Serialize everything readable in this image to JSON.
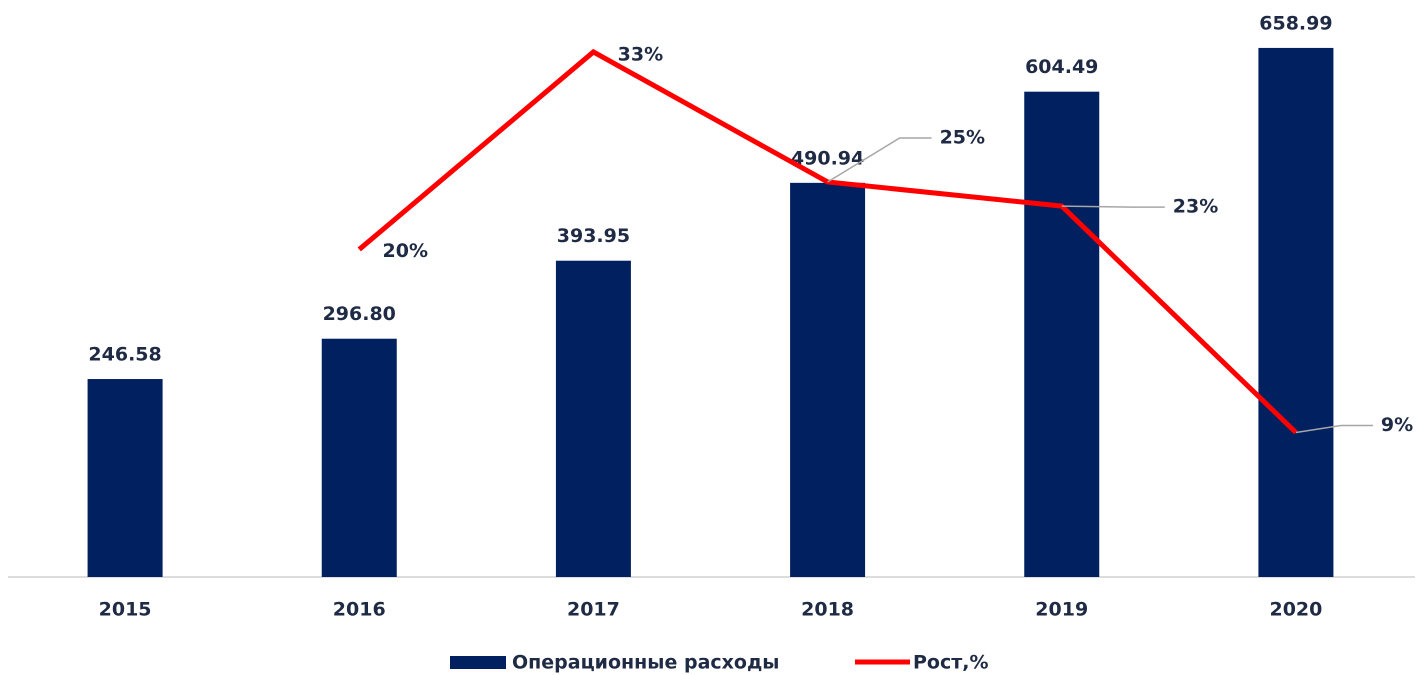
{
  "chart_data": {
    "type": "bar",
    "categories": [
      "2015",
      "2016",
      "2017",
      "2018",
      "2019",
      "2020"
    ],
    "ylim": [
      0,
      700
    ],
    "y2lim": [
      0,
      35
    ],
    "series": [
      {
        "name": "Операционные расходы",
        "type": "bar",
        "color": "#002060",
        "values": [
          246.58,
          296.8,
          393.95,
          490.94,
          604.49,
          658.99
        ],
        "value_labels": [
          "246.58",
          "296.80",
          "393.95",
          "490.94",
          "604.49",
          "658.99"
        ]
      },
      {
        "name": "Рост,%",
        "type": "line",
        "axis": "y2",
        "color": "#ff0000",
        "values": [
          null,
          20.4,
          32.7,
          24.6,
          23.1,
          9.0
        ],
        "value_labels": [
          null,
          "20%",
          "33%",
          "25%",
          "23%",
          "9%"
        ]
      }
    ]
  }
}
